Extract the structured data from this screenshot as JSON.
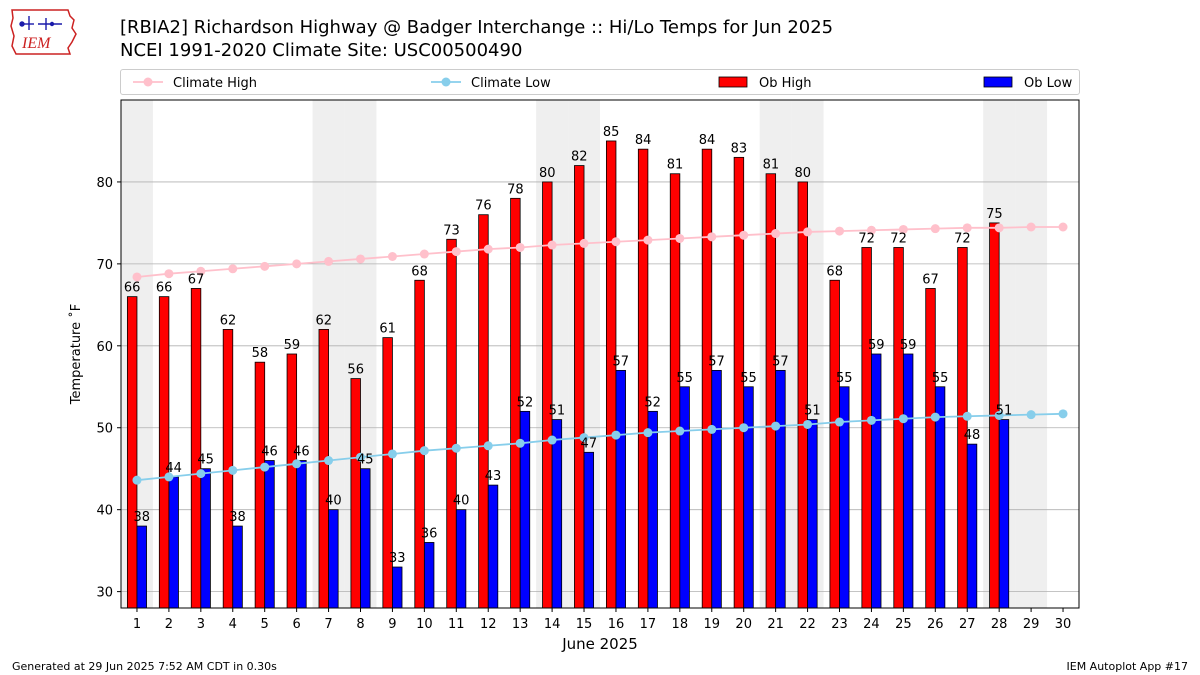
{
  "header": {
    "title_line1": "[RBIA2] Richardson Highway @ Badger Interchange :: Hi/Lo Temps for Jun 2025",
    "title_line2": "NCEI 1991-2020 Climate Site: USC00500490",
    "logo_text": "IEM"
  },
  "footer": {
    "left": "Generated at 29 Jun 2025 7:52 AM CDT in 0.30s",
    "right": "IEM Autoplot App #17"
  },
  "colors": {
    "ob_high": "#ff0000",
    "ob_low": "#0000ff",
    "climate_high": "#ffc0cb",
    "climate_low": "#87ceeb",
    "weekend_band": "#efefef",
    "grid": "#b0b0b0"
  },
  "chart_data": {
    "type": "bar",
    "xlabel": "June 2025",
    "ylabel": "Temperature ˚F",
    "ylim": [
      28,
      90
    ],
    "xlim": [
      0.5,
      30.5
    ],
    "yticks": [
      30,
      40,
      50,
      60,
      70,
      80
    ],
    "x": [
      1,
      2,
      3,
      4,
      5,
      6,
      7,
      8,
      9,
      10,
      11,
      12,
      13,
      14,
      15,
      16,
      17,
      18,
      19,
      20,
      21,
      22,
      23,
      24,
      25,
      26,
      27,
      28,
      29,
      30
    ],
    "shaded_days": [
      1,
      7,
      8,
      14,
      15,
      21,
      22,
      28,
      29
    ],
    "grid": "horizontal",
    "legend_position": "top",
    "series": [
      {
        "name": "Climate High",
        "kind": "line",
        "values": [
          68.4,
          68.8,
          69.1,
          69.4,
          69.7,
          70.0,
          70.3,
          70.6,
          70.9,
          71.2,
          71.5,
          71.8,
          72.0,
          72.3,
          72.5,
          72.7,
          72.9,
          73.1,
          73.3,
          73.5,
          73.7,
          73.9,
          74.0,
          74.1,
          74.2,
          74.3,
          74.4,
          74.4,
          74.5,
          74.5
        ]
      },
      {
        "name": "Climate Low",
        "kind": "line",
        "values": [
          43.6,
          44.0,
          44.4,
          44.8,
          45.2,
          45.6,
          46.0,
          46.4,
          46.8,
          47.2,
          47.5,
          47.8,
          48.1,
          48.5,
          48.8,
          49.1,
          49.4,
          49.6,
          49.8,
          50.0,
          50.2,
          50.4,
          50.7,
          50.9,
          51.1,
          51.3,
          51.4,
          51.5,
          51.6,
          51.7
        ]
      },
      {
        "name": "Ob High",
        "kind": "bar",
        "values": [
          66,
          66,
          67,
          62,
          58,
          59,
          62,
          56,
          61,
          68,
          73,
          76,
          78,
          80,
          82,
          85,
          84,
          81,
          84,
          83,
          81,
          80,
          68,
          72,
          72,
          67,
          72,
          75,
          null,
          null
        ]
      },
      {
        "name": "Ob Low",
        "kind": "bar",
        "values": [
          38,
          44,
          45,
          38,
          46,
          46,
          40,
          45,
          33,
          36,
          40,
          43,
          52,
          51,
          47,
          57,
          52,
          55,
          57,
          55,
          57,
          51,
          55,
          59,
          59,
          55,
          48,
          51,
          null,
          null
        ]
      }
    ]
  }
}
